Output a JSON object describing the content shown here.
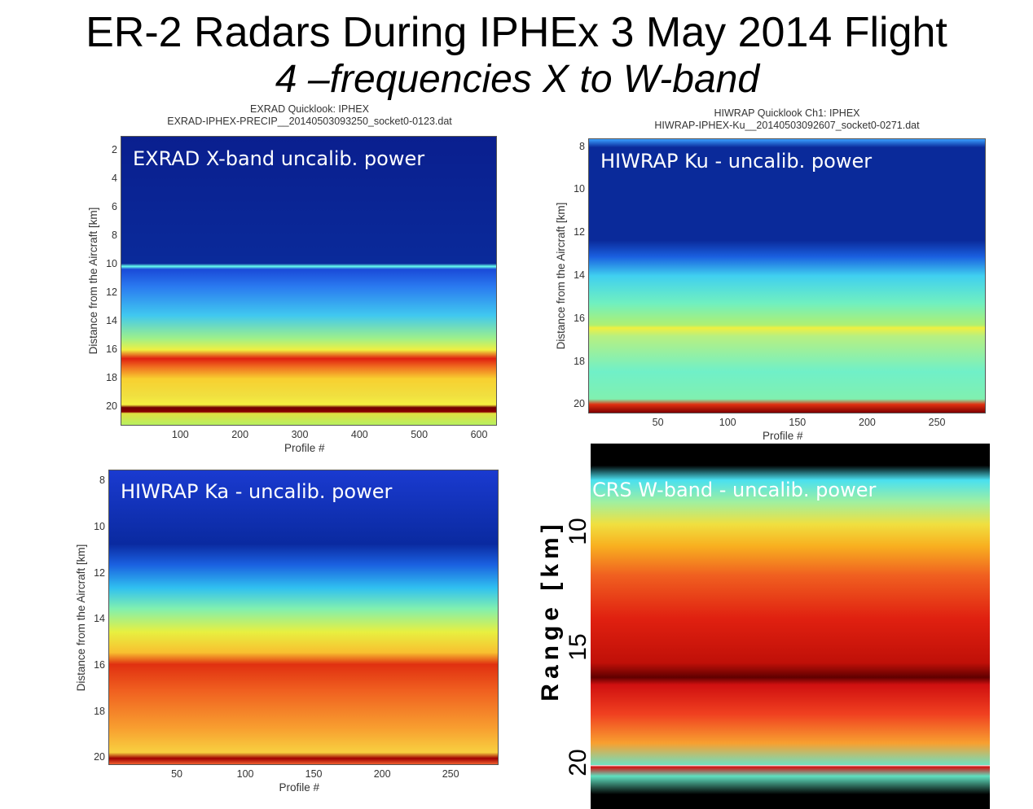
{
  "slide": {
    "title": "ER-2 Radars During IPHEx 3 May 2014 Flight",
    "subtitle": "4 –frequencies X to W-band"
  },
  "chart_data": [
    {
      "type": "heatmap",
      "id": "exrad",
      "title": "EXRAD Quicklook: IPHEX",
      "subtitle": "EXRAD-IPHEX-PRECIP__20140503093250_socket0-0123.dat",
      "overlay_label": "EXRAD X-band uncalib. power",
      "xlabel": "Profile #",
      "ylabel": "Distance from the Aircraft [km]",
      "xticks": [
        100,
        200,
        300,
        400,
        500,
        600
      ],
      "yticks": [
        2,
        4,
        6,
        8,
        10,
        12,
        14,
        16,
        18,
        20
      ],
      "xlim": [
        0,
        630
      ],
      "ylim": [
        1,
        21.3
      ]
    },
    {
      "type": "heatmap",
      "id": "hiwrap-ku",
      "title": "HIWRAP Quicklook Ch1: IPHEX",
      "subtitle": "HIWRAP-IPHEX-Ku__20140503092607_socket0-0271.dat",
      "overlay_label": "HIWRAP Ku - uncalib. power",
      "xlabel": "Profile #",
      "ylabel": "Distance from the Aircraft [km]",
      "xticks": [
        50,
        100,
        150,
        200,
        250
      ],
      "yticks": [
        8,
        10,
        12,
        14,
        16,
        18,
        20
      ],
      "xlim": [
        0,
        285
      ],
      "ylim": [
        7.6,
        20.4
      ]
    },
    {
      "type": "heatmap",
      "id": "hiwrap-ka",
      "title": "",
      "subtitle": "",
      "overlay_label": "HIWRAP Ka - uncalib. power",
      "xlabel": "Profile #",
      "ylabel": "Distance from the Aircraft [km]",
      "xticks": [
        50,
        100,
        150,
        200,
        250
      ],
      "yticks": [
        8,
        10,
        12,
        14,
        16,
        18,
        20
      ],
      "xlim": [
        0,
        285
      ],
      "ylim": [
        7.5,
        20.3
      ]
    },
    {
      "type": "heatmap",
      "id": "crs",
      "title": "",
      "subtitle": "",
      "overlay_label": "CRS W-band - uncalib. power",
      "xlabel": "",
      "ylabel": "Range [km]",
      "xticks": [],
      "yticks": [
        10,
        15,
        20
      ],
      "xlim": [
        0,
        1
      ],
      "ylim": [
        6.2,
        22
      ]
    }
  ]
}
